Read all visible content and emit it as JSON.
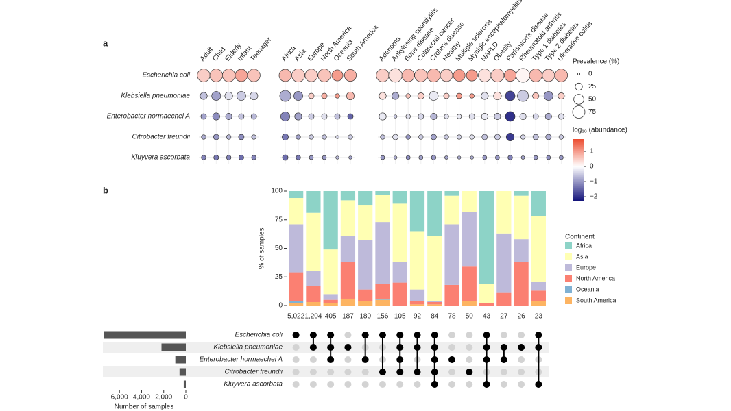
{
  "chart_data": [
    {
      "type": "dotmatrix",
      "panel": "a",
      "rows": [
        "Escherichia coli",
        "Klebsiella pneumoniae",
        "Enterobacter hormaechei A",
        "Citrobacter freundii",
        "Kluyvera ascorbata"
      ],
      "column_groups": [
        [
          "Adult",
          "Child",
          "Elderly",
          "Infant",
          "Teenager"
        ],
        [
          "Africa",
          "Asia",
          "Europe",
          "North America",
          "Oceania",
          "South America"
        ],
        [
          "Adenoma",
          "Ankylosing spondylitis",
          "Bone disease",
          "Colorectal cancer",
          "Crohn's disease",
          "Healthy",
          "Multiple sclerosis",
          "Myalgic encephalomyelitis",
          "NAFLD",
          "Obesity",
          "Parkinson's disease",
          "Rheumatoid arthritis",
          "Type 1 diabetes",
          "Type 2 diabetes",
          "Ulcerative colitis"
        ]
      ],
      "prevalence": [
        [
          80,
          80,
          80,
          75,
          78,
          75,
          85,
          78,
          80,
          60,
          70,
          80,
          90,
          78,
          80,
          85,
          75,
          68,
          62,
          80,
          85,
          70,
          95,
          80,
          75,
          80
        ],
        [
          25,
          40,
          30,
          40,
          30,
          60,
          40,
          15,
          15,
          10,
          30,
          25,
          25,
          10,
          20,
          40,
          15,
          15,
          10,
          25,
          30,
          45,
          60,
          20,
          40,
          20
        ],
        [
          15,
          25,
          20,
          15,
          15,
          40,
          25,
          15,
          15,
          15,
          15,
          25,
          5,
          10,
          15,
          20,
          10,
          10,
          15,
          20,
          20,
          45,
          20,
          15,
          20,
          15
        ],
        [
          10,
          15,
          10,
          15,
          10,
          20,
          10,
          10,
          10,
          5,
          10,
          10,
          15,
          10,
          10,
          15,
          10,
          10,
          10,
          15,
          15,
          30,
          10,
          15,
          15,
          10
        ],
        [
          10,
          12,
          10,
          12,
          10,
          15,
          10,
          8,
          8,
          5,
          5,
          8,
          5,
          8,
          8,
          10,
          6,
          5,
          5,
          8,
          8,
          10,
          6,
          8,
          8,
          8
        ]
      ],
      "abundance": [
        [
          0.5,
          0.6,
          0.6,
          0.9,
          0.6,
          0.7,
          0.5,
          0.5,
          0.6,
          1.0,
          0.8,
          0.5,
          0.3,
          0.7,
          0.6,
          0.7,
          0.5,
          1.0,
          1.0,
          0.3,
          0.5,
          0.9,
          0.1,
          0.7,
          0.5,
          0.7
        ],
        [
          -0.6,
          -0.9,
          -0.3,
          -0.5,
          -0.4,
          -0.8,
          -1.0,
          0.5,
          0.8,
          1.0,
          0.7,
          0.3,
          -0.8,
          0.6,
          0.5,
          -0.2,
          0.5,
          1.0,
          1.0,
          -0.3,
          0.3,
          -1.8,
          -0.5,
          0.6,
          -1.0,
          0.5
        ],
        [
          -0.9,
          -1.1,
          -0.8,
          -0.6,
          -0.7,
          -1.2,
          -0.9,
          -0.5,
          -0.3,
          -0.6,
          -1.5,
          -0.2,
          -0.5,
          -0.3,
          -0.4,
          -0.7,
          -0.3,
          -0.2,
          -0.3,
          -0.2,
          -0.5,
          -2.0,
          -0.3,
          -0.4,
          -0.8,
          -0.3
        ],
        [
          -0.8,
          -1.0,
          -0.7,
          -1.1,
          -0.6,
          -1.3,
          -0.9,
          -0.5,
          -0.6,
          -0.4,
          -0.5,
          -0.6,
          -0.3,
          -1.0,
          -0.5,
          -0.9,
          -0.5,
          -0.4,
          -0.3,
          -0.6,
          -0.5,
          -1.9,
          -0.4,
          -0.6,
          -0.8,
          -0.5
        ],
        [
          -1.2,
          -1.3,
          -1.2,
          -1.4,
          -1.2,
          -1.4,
          -1.3,
          -1.0,
          -1.0,
          -0.7,
          -0.9,
          -1.0,
          -0.8,
          -1.1,
          -0.9,
          -1.0,
          -0.9,
          -0.8,
          -0.8,
          -1.0,
          -1.0,
          -1.2,
          -0.9,
          -1.0,
          -1.1,
          -1.0
        ]
      ],
      "size_legend": {
        "title": "Prevalence (%)",
        "ticks": [
          0,
          25,
          50,
          75
        ]
      },
      "color_legend": {
        "title": "log₁₀ (abundance)",
        "colorlim": [
          -2.27,
          1.82
        ],
        "ticks": [
          1,
          0,
          {
            "value": -1,
            "label": "−1"
          },
          {
            "value": -2,
            "label": "−2"
          }
        ]
      },
      "grid": true
    },
    {
      "type": "stacked_bar",
      "panel": "b",
      "ylabel": "% of samples",
      "categories": [
        "5,022",
        "1,204",
        "405",
        "187",
        "180",
        "156",
        "105",
        "92",
        "84",
        "78",
        "50",
        "43",
        "27",
        "26",
        "23"
      ],
      "ylim": [
        0,
        100
      ],
      "yticks": [
        0,
        25,
        50,
        75,
        100
      ],
      "legend_title": "Continent",
      "legend": "right",
      "series": [
        {
          "name": "Africa",
          "color": "#8dd3c7",
          "values": [
            6,
            19,
            51,
            8,
            12,
            3,
            11,
            35,
            39,
            4,
            0,
            81,
            0,
            4,
            22
          ]
        },
        {
          "name": "Asia",
          "color": "#ffffb3",
          "values": [
            23,
            51,
            39,
            31,
            31,
            24,
            51,
            51,
            57,
            25,
            18,
            17,
            37,
            38,
            57
          ]
        },
        {
          "name": "Europe",
          "color": "#bebada",
          "values": [
            42,
            13,
            5,
            23,
            43,
            54,
            18,
            10,
            1,
            53,
            48,
            0,
            52,
            20,
            8
          ]
        },
        {
          "name": "North America",
          "color": "#fb8072",
          "values": [
            25,
            14,
            3,
            32,
            10,
            13,
            20,
            3,
            2,
            18,
            30,
            2,
            11,
            38,
            9
          ]
        },
        {
          "name": "Oceania",
          "color": "#80b1d3",
          "values": [
            2,
            0,
            0,
            0,
            0,
            1,
            0,
            0,
            0,
            0,
            0,
            0,
            0,
            0,
            0
          ]
        },
        {
          "name": "South America",
          "color": "#fdb462",
          "values": [
            2,
            3,
            2,
            6,
            4,
            5,
            0,
            1,
            1,
            0,
            4,
            0,
            0,
            0,
            4
          ]
        }
      ]
    },
    {
      "type": "upset",
      "xlabel": "Number of samples",
      "sets": [
        "Escherichia coli",
        "Klebsiella pneumoniae",
        "Enterobacter hormaechei A",
        "Citrobacter freundii",
        "Kluyvera ascorbata"
      ],
      "set_sizes": [
        7400,
        2200,
        950,
        570,
        190
      ],
      "xlim": [
        7500,
        0
      ],
      "xticks": [
        {
          "value": 6000,
          "label": "6,000"
        },
        {
          "value": 4000,
          "label": "4,000"
        },
        {
          "value": 2000,
          "label": "2,000"
        },
        0
      ],
      "membership": [
        [
          1,
          0,
          0,
          0,
          0
        ],
        [
          1,
          1,
          0,
          0,
          0
        ],
        [
          1,
          1,
          1,
          0,
          0
        ],
        [
          0,
          1,
          0,
          0,
          0
        ],
        [
          1,
          0,
          1,
          0,
          0
        ],
        [
          1,
          0,
          0,
          1,
          0
        ],
        [
          1,
          1,
          1,
          1,
          0
        ],
        [
          1,
          1,
          0,
          1,
          0
        ],
        [
          1,
          1,
          1,
          1,
          1
        ],
        [
          0,
          0,
          1,
          0,
          0
        ],
        [
          0,
          0,
          0,
          1,
          0
        ],
        [
          1,
          1,
          1,
          0,
          1
        ],
        [
          0,
          1,
          1,
          0,
          0
        ],
        [
          0,
          1,
          0,
          0,
          0
        ],
        [
          1,
          1,
          0,
          0,
          1
        ]
      ]
    }
  ]
}
